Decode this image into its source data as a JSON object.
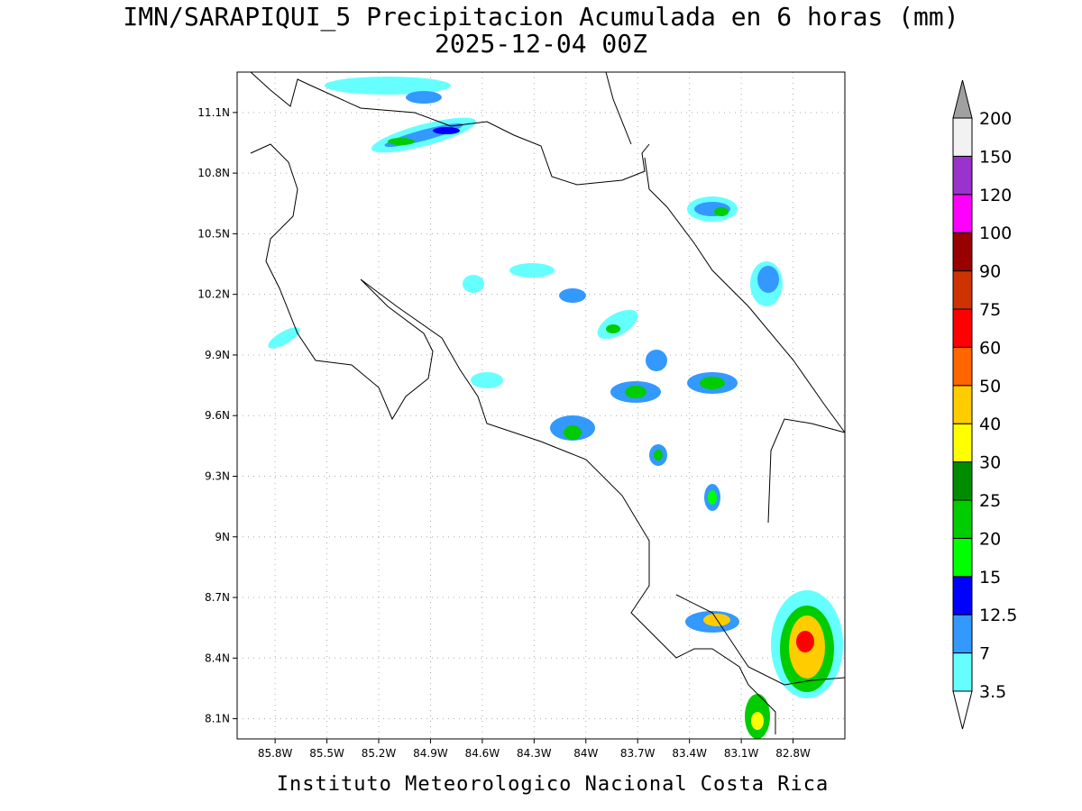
{
  "header": {
    "title": "IMN/SARAPIQUI_5 Precipitacion Acumulada en 6 horas (mm)",
    "subtitle": "2025-12-04 00Z"
  },
  "map": {
    "lon_range": [
      -86.02,
      -82.5
    ],
    "lat_range": [
      8.0,
      11.3
    ],
    "lon_ticks": [
      {
        "value": -85.8,
        "label": "85.8W"
      },
      {
        "value": -85.5,
        "label": "85.5W"
      },
      {
        "value": -85.2,
        "label": "85.2W"
      },
      {
        "value": -84.9,
        "label": "84.9W"
      },
      {
        "value": -84.6,
        "label": "84.6W"
      },
      {
        "value": -84.3,
        "label": "84.3W"
      },
      {
        "value": -84.0,
        "label": "84W"
      },
      {
        "value": -83.7,
        "label": "83.7W"
      },
      {
        "value": -83.4,
        "label": "83.4W"
      },
      {
        "value": -83.1,
        "label": "83.1W"
      },
      {
        "value": -82.8,
        "label": "82.8W"
      }
    ],
    "lat_ticks": [
      {
        "value": 8.1,
        "label": "8.1N"
      },
      {
        "value": 8.4,
        "label": "8.4N"
      },
      {
        "value": 8.7,
        "label": "8.7N"
      },
      {
        "value": 9.0,
        "label": "9N"
      },
      {
        "value": 9.3,
        "label": "9.3N"
      },
      {
        "value": 9.6,
        "label": "9.6N"
      },
      {
        "value": 9.9,
        "label": "9.9N"
      },
      {
        "value": 10.2,
        "label": "10.2N"
      },
      {
        "value": 10.5,
        "label": "10.5N"
      },
      {
        "value": 10.8,
        "label": "10.8N"
      },
      {
        "value": 11.1,
        "label": "11.1N"
      }
    ]
  },
  "colorbar": {
    "levels": [
      3.5,
      7,
      12.5,
      15,
      20,
      25,
      30,
      40,
      50,
      60,
      75,
      90,
      100,
      120,
      150,
      200
    ],
    "colors": [
      "#66ffff",
      "#3399ff",
      "#0000ff",
      "#00ff00",
      "#00cc00",
      "#008c00",
      "#ffff00",
      "#ffcc00",
      "#ff6600",
      "#ff0000",
      "#cc3300",
      "#990000",
      "#ff00ff",
      "#9933cc",
      "#f2f2f2"
    ],
    "over_color": "#a0a0a0",
    "under_color": "#ffffff"
  },
  "footer": "Instituto Meteorologico Nacional Costa Rica"
}
